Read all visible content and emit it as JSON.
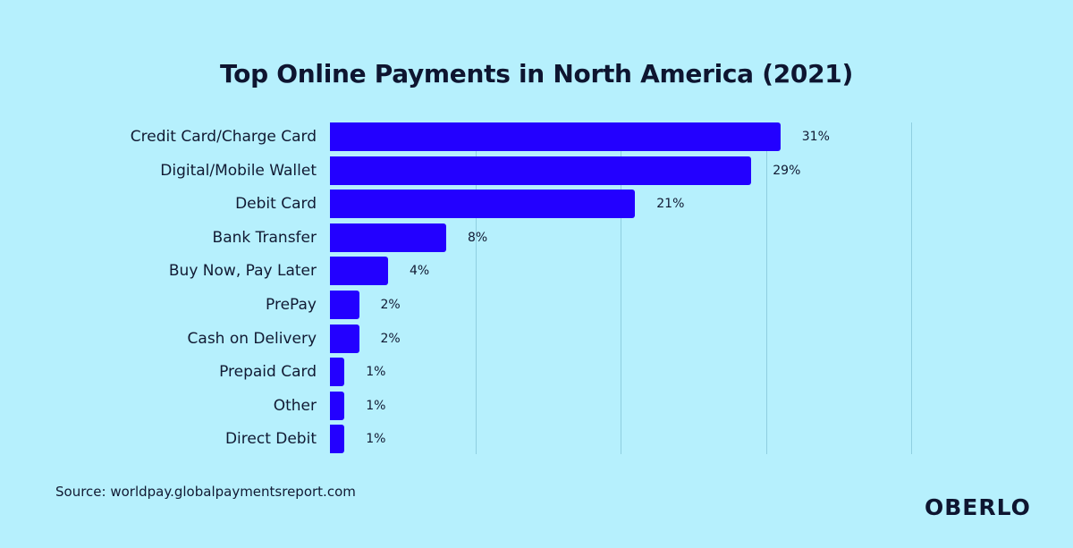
{
  "title": "Top Online Payments in North America (2021)",
  "source": "Source: worldpay.globalpaymentsreport.com",
  "brand": "OBERLO",
  "colors": {
    "background": "#b6f0fd",
    "bar": "#2300ff",
    "text": "#111a33",
    "grid": "#8fcfe0"
  },
  "chart_data": {
    "type": "bar",
    "orientation": "horizontal",
    "title": "Top Online Payments in North America (2021)",
    "xlabel": "",
    "ylabel": "",
    "categories": [
      "Credit Card/Charge Card",
      "Digital/Mobile Wallet",
      "Debit Card",
      "Bank Transfer",
      "Buy Now, Pay Later",
      "PrePay",
      "Cash on Delivery",
      "Prepaid Card",
      "Other",
      "Direct Debit"
    ],
    "values": [
      31,
      29,
      21,
      8,
      4,
      2,
      2,
      1,
      1,
      1
    ],
    "value_labels": [
      "31%",
      "29%",
      "21%",
      "8%",
      "4%",
      "2%",
      "2%",
      "1%",
      "1%",
      "1%"
    ],
    "unit": "%",
    "xlim": [
      0,
      40
    ],
    "gridlines": [
      0,
      10,
      20,
      30,
      40
    ],
    "grid": true,
    "legend": "none"
  }
}
